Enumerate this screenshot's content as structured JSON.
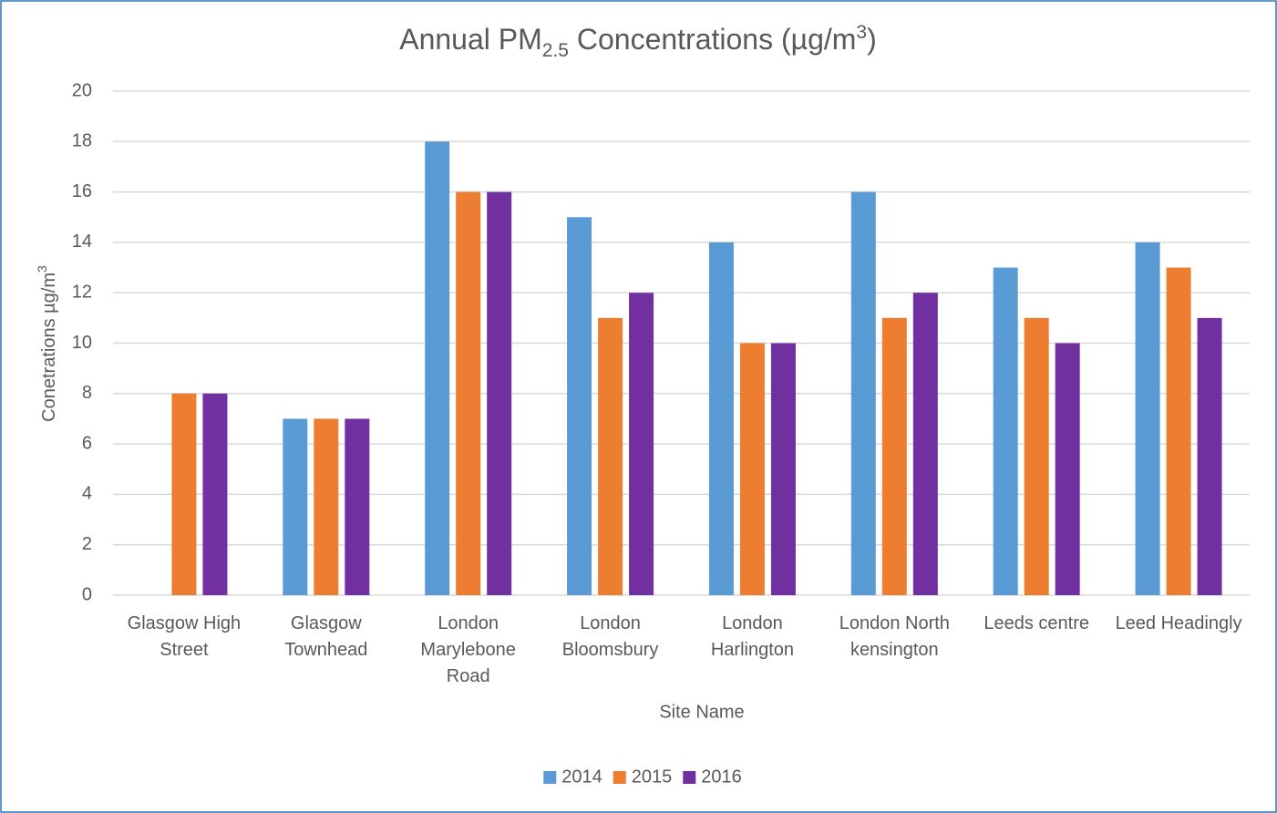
{
  "chart_data": {
    "type": "bar",
    "title": [
      "Annual PM",
      "2.5",
      " Concentrations (µg/m",
      "3",
      ")"
    ],
    "xlabel": "Site Name",
    "ylabel": [
      "Conetrations µg/m",
      "3"
    ],
    "categories": [
      "Glasgow High Street",
      "Glasgow Townhead",
      "London Marylebone Road",
      "London Bloomsbury",
      "London Harlington",
      "London North kensington",
      "Leeds centre",
      "Leed Headingly"
    ],
    "series": [
      {
        "name": "2014",
        "color": "#5b9bd5",
        "values": [
          null,
          7,
          18,
          15,
          14,
          16,
          13,
          14
        ]
      },
      {
        "name": "2015",
        "color": "#ed7d31",
        "values": [
          8,
          7,
          16,
          11,
          10,
          11,
          11,
          13
        ]
      },
      {
        "name": "2016",
        "color": "#7030a0",
        "values": [
          8,
          7,
          16,
          12,
          10,
          12,
          10,
          11
        ]
      }
    ],
    "ylim": [
      0,
      20
    ],
    "yticks": [
      0,
      2,
      4,
      6,
      8,
      10,
      12,
      14,
      16,
      18,
      20
    ],
    "grid": true,
    "legend": "bottom"
  }
}
